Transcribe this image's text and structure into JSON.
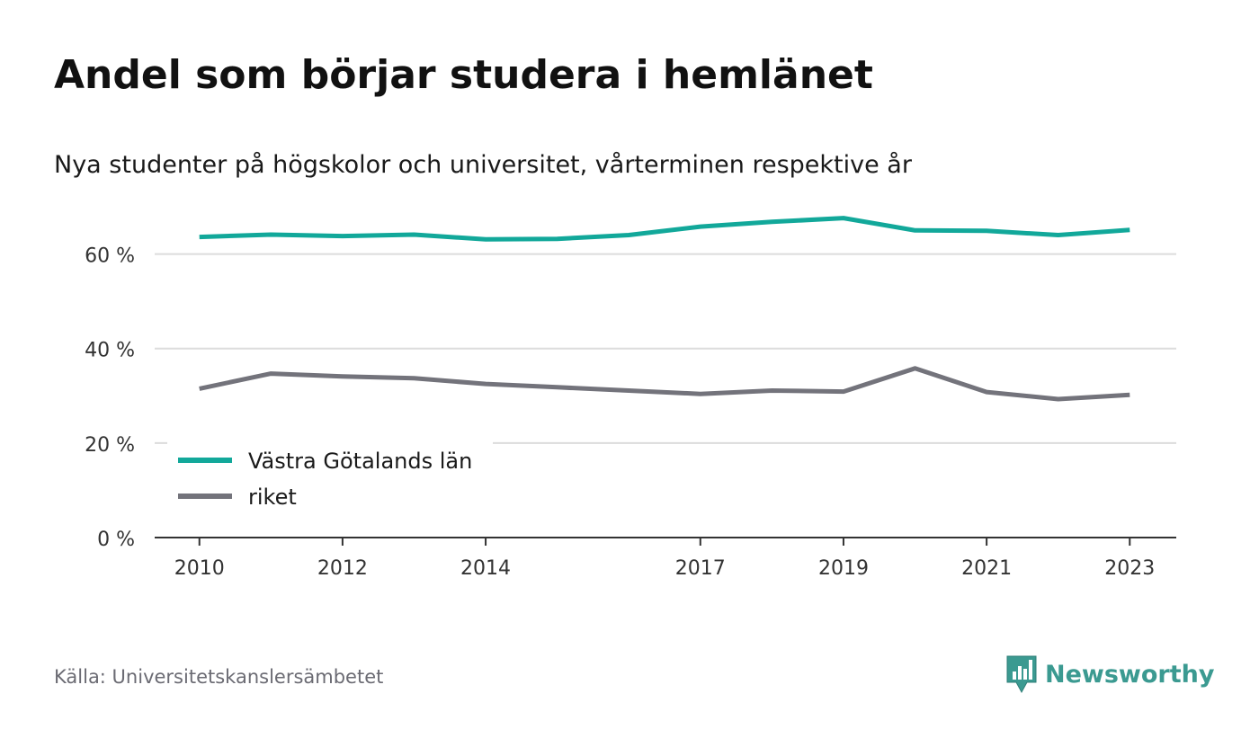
{
  "header": {
    "title": "Andel som börjar studera i hemlänet",
    "subtitle": "Nya studenter på högskolor och universitet, vårterminen respektive år"
  },
  "footer": {
    "source": "Källa: Universitetskanslersämbetet",
    "brand": "Newsworthy",
    "brand_icon": "newsworthy-logo-icon"
  },
  "colors": {
    "series_1": "#12a89a",
    "series_2": "#73737b",
    "grid": "#dcdcdc",
    "axis": "#333333",
    "text": "#333333",
    "brand": "#3b9a91"
  },
  "chart_data": {
    "type": "line",
    "title": "Andel som börjar studera i hemlänet",
    "subtitle": "Nya studenter på högskolor och universitet, vårterminen respektive år",
    "x": [
      2010,
      2011,
      2012,
      2013,
      2014,
      2015,
      2016,
      2017,
      2018,
      2019,
      2020,
      2021,
      2022,
      2023
    ],
    "x_tick_labels": [
      "2010",
      "2012",
      "2014",
      "2017",
      "2019",
      "2021",
      "2023"
    ],
    "x_ticks": [
      2010,
      2012,
      2014,
      2017,
      2019,
      2021,
      2023
    ],
    "y_ticks": [
      0,
      20,
      40,
      60
    ],
    "y_tick_labels": [
      "0 %",
      "20 %",
      "40 %",
      "60 %"
    ],
    "ylim": [
      0,
      70
    ],
    "xlim": [
      2009.375,
      2023.65
    ],
    "grid": true,
    "legend_position": "bottom-left",
    "series": [
      {
        "name": "Västra Götalands län",
        "values": [
          63.6,
          64.1,
          63.8,
          64.1,
          63.1,
          63.2,
          64.0,
          65.8,
          66.8,
          67.6,
          65.0,
          64.9,
          64.0,
          65.1
        ]
      },
      {
        "name": "riket",
        "values": [
          31.5,
          34.7,
          34.1,
          33.7,
          32.5,
          31.8,
          31.1,
          30.4,
          31.1,
          30.9,
          35.8,
          30.8,
          29.3,
          30.2
        ]
      }
    ]
  }
}
